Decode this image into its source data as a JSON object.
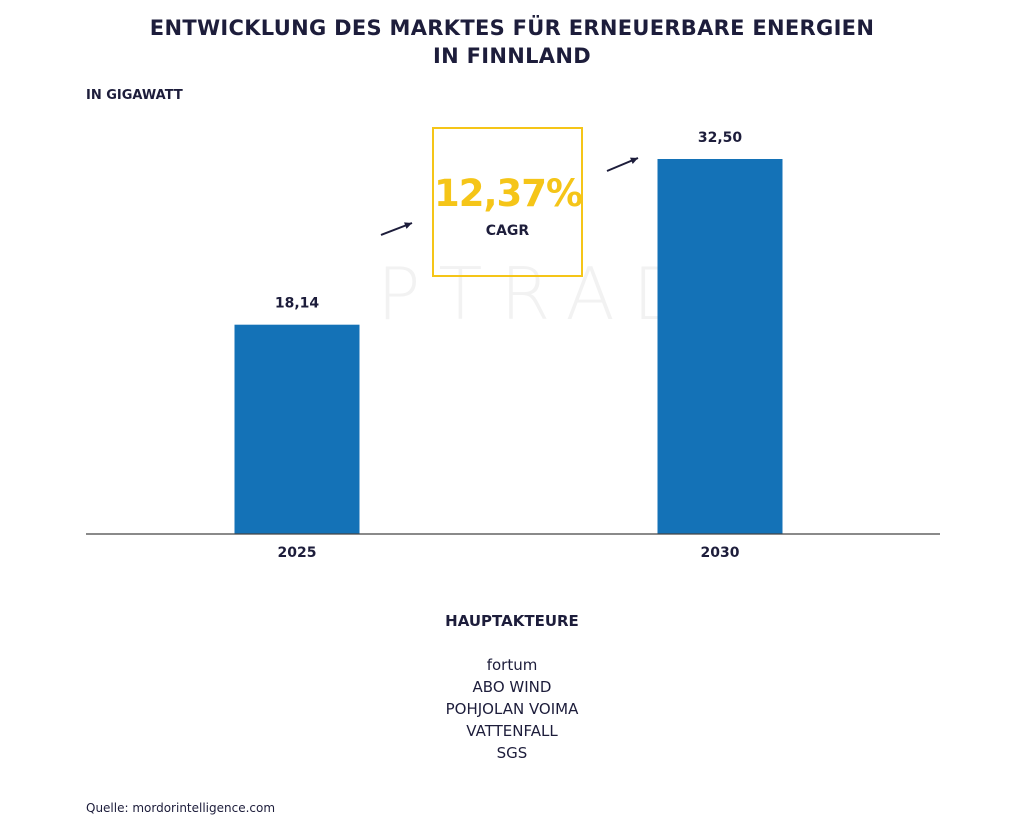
{
  "title_line1": "ENTWICKLUNG DES MARKTES FÜR ERNEUERBARE ENERGIEN",
  "title_line2": "IN FINNLAND",
  "unit_label": "IN GIGAWATT",
  "watermark": "PTRAD",
  "cagr": {
    "value": "12,37%",
    "label": "CAGR",
    "color": "#f5c518"
  },
  "players": {
    "heading": "HAUPTAKTEURE",
    "items": [
      "fortum",
      "ABO WIND",
      "POHJOLAN VOIMA",
      "VATTENFALL",
      "SGS"
    ]
  },
  "source": "Quelle: mordorintelligence.com",
  "colors": {
    "bar": "#1472b7",
    "text": "#1d1d3b",
    "axis": "#444444"
  },
  "chart_data": {
    "type": "bar",
    "title": "ENTWICKLUNG DES MARKTES FÜR ERNEUERBARE ENERGIEN IN FINNLAND",
    "ylabel": "IN GIGAWATT",
    "categories": [
      "2025",
      "2030"
    ],
    "values": [
      18.14,
      32.5
    ],
    "value_labels": [
      "18,14",
      "32,50"
    ],
    "ylim": [
      0,
      32.5
    ],
    "grid": false
  }
}
